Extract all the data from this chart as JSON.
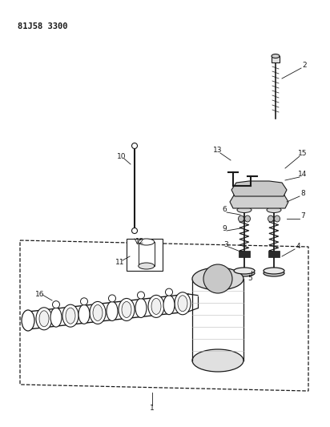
{
  "title": "81J58 3300",
  "bg_color": "#ffffff",
  "line_color": "#1a1a1a",
  "fig_width": 4.12,
  "fig_height": 5.33,
  "dpi": 100
}
